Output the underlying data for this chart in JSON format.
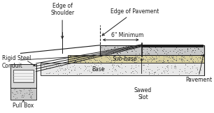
{
  "bg_color": "#ffffff",
  "line_color": "#1a1a1a",
  "pavement_fill": "#c8c8c8",
  "subbase_fill": "#d8d0a0",
  "base_fill": "#e8e8e8",
  "pullbox_fill": "#d0d0d0",
  "labels": {
    "edge_shoulder": "Edge of\nShoulder",
    "edge_pavement": "Edge of Pavement",
    "six_min": "6\" Minimum",
    "rigid_steel": "Rigid Steel\nConduit",
    "pull_box": "Pull Box",
    "base": "Base",
    "subbase": "Sub-base",
    "pavement": "Pavement",
    "sawed_slot": "Sawed\nSlot"
  },
  "font_size": 5.5
}
